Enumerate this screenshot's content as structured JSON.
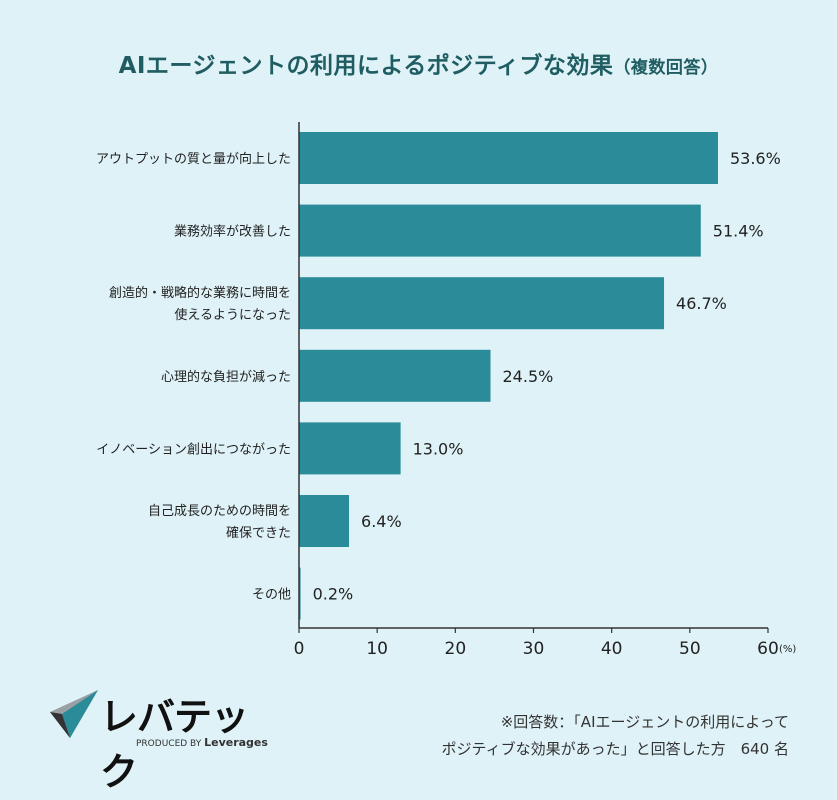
{
  "title": "AIエージェントの利用によるポジティブな効果",
  "title_suffix": "（複数回答）",
  "chart_data": {
    "type": "bar",
    "orientation": "horizontal",
    "categories": [
      "アウトプットの質と量が向上した",
      "業務効率が改善した",
      "創造的・戦略的な業務に時間を\n使えるようになった",
      "心理的な負担が減った",
      "イノベーション創出につながった",
      "自己成長のための時間を\n確保できた",
      "その他"
    ],
    "values": [
      53.6,
      51.4,
      46.7,
      24.5,
      13.0,
      6.4,
      0.2
    ],
    "value_labels": [
      "53.6%",
      "51.4%",
      "46.7%",
      "24.5%",
      "13.0%",
      "6.4%",
      "0.2%"
    ],
    "xlim": [
      0,
      60
    ],
    "xticks": [
      "0",
      "10",
      "20",
      "30",
      "40",
      "50",
      "60"
    ],
    "xunit": "(%)",
    "bar_color": "#2a8c98",
    "grid": false
  },
  "logo": {
    "name": "レバテック",
    "produced_by": "PRODUCED BY",
    "company": "Leverages"
  },
  "note": {
    "line1": "※回答数：「AIエージェントの利用によって",
    "line2": "ポジティブな効果があった」と回答した方　640 名"
  }
}
